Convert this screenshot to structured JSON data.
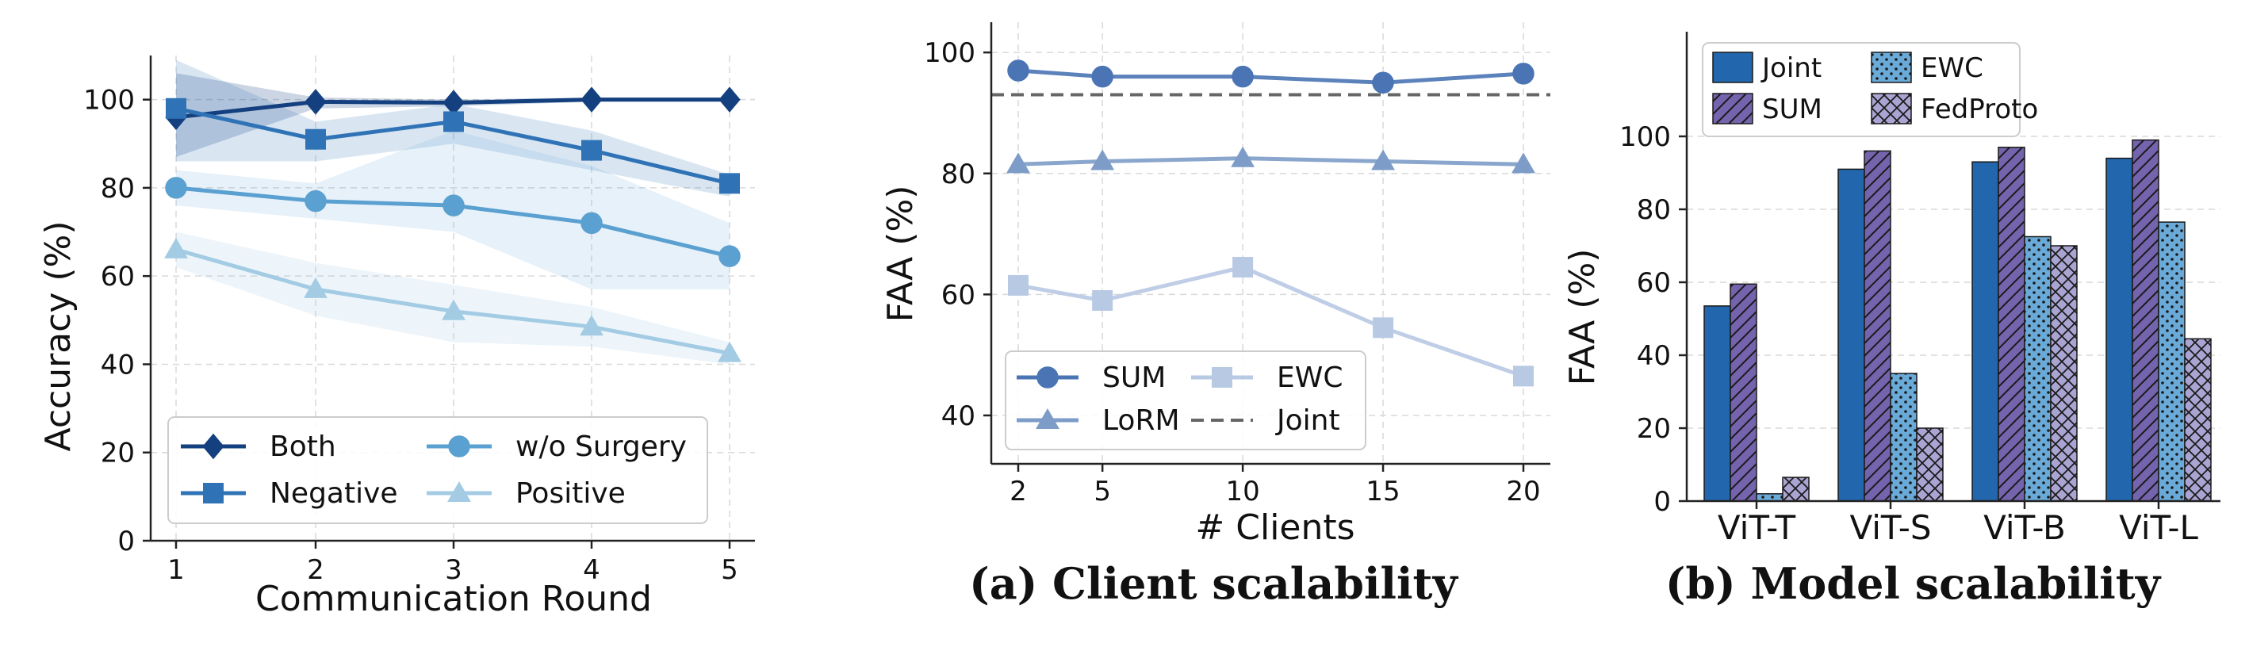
{
  "chart_data": [
    {
      "type": "line",
      "xlabel": "Communication Round",
      "ylabel": "Accuracy (%)",
      "x": [
        1,
        2,
        3,
        4,
        5
      ],
      "xticks": [
        "1",
        "2",
        "3",
        "4",
        "5"
      ],
      "ylim": [
        0,
        110
      ],
      "yticks": [
        "0",
        "20",
        "40",
        "60",
        "80",
        "100"
      ],
      "grid": true,
      "legend_position": "bottom",
      "series": [
        {
          "name": "Both",
          "marker": "diamond",
          "color": "#14407f",
          "values": [
            96,
            99.5,
            99.3,
            100,
            100
          ],
          "band_low": [
            87,
            98,
            98.5,
            99.5,
            99.5
          ],
          "band_high": [
            106,
            100.5,
            100,
            100.5,
            100.5
          ],
          "band_color": "#14407f",
          "band_opacity": 0.22
        },
        {
          "name": "Negative",
          "marker": "square",
          "color": "#2f73b6",
          "values": [
            98,
            91,
            95,
            88.5,
            81
          ],
          "band_low": [
            86,
            86,
            90,
            84,
            78
          ],
          "band_high": [
            109,
            95,
            99,
            93,
            83
          ],
          "band_color": "#2f73b6",
          "band_opacity": 0.18
        },
        {
          "name": "w/o Surgery",
          "marker": "circle",
          "color": "#5aa0d0",
          "values": [
            80,
            77,
            76,
            72,
            64.5
          ],
          "band_low": [
            76,
            73,
            70,
            57,
            57
          ],
          "band_high": [
            84,
            81,
            93,
            85,
            72
          ],
          "band_color": "#6aaad8",
          "band_opacity": 0.16
        },
        {
          "name": "Positive",
          "marker": "triangle",
          "color": "#a3cce4",
          "values": [
            66,
            57,
            52,
            48.5,
            42.5
          ],
          "band_low": [
            62,
            51,
            45,
            44,
            40
          ],
          "band_high": [
            70,
            63,
            58,
            53,
            45
          ],
          "band_color": "#a3cce4",
          "band_opacity": 0.2
        }
      ]
    },
    {
      "type": "line",
      "caption": "(a) Client scalability",
      "xlabel": "# Clients",
      "ylabel": "FAA (%)",
      "x": [
        2,
        5,
        10,
        15,
        20
      ],
      "xticks": [
        "2",
        "5",
        "10",
        "15",
        "20"
      ],
      "xlim": [
        1.5,
        20.5
      ],
      "ylim": [
        32,
        105
      ],
      "yticks": [
        "40",
        "60",
        "80",
        "100"
      ],
      "grid": true,
      "legend_position": "bottom",
      "series": [
        {
          "name": "SUM",
          "marker": "circle",
          "color": "#4a74b4",
          "values": [
            97,
            96,
            96,
            95,
            96.5
          ]
        },
        {
          "name": "LoRM",
          "marker": "triangle",
          "color": "#7d9cc8",
          "values": [
            81.5,
            82,
            82.5,
            82,
            81.5
          ]
        },
        {
          "name": "EWC",
          "marker": "square",
          "color": "#b8c9e3",
          "values": [
            61.5,
            59,
            64.5,
            54.5,
            46.5
          ]
        },
        {
          "name": "Joint",
          "marker": "none",
          "dashed": true,
          "color": "#666666",
          "values": [
            93,
            93,
            93,
            93,
            93
          ]
        }
      ]
    },
    {
      "type": "bar",
      "caption": "(b) Model scalability",
      "ylabel": "FAA (%)",
      "categories": [
        "ViT-T",
        "ViT-S",
        "ViT-B",
        "ViT-L"
      ],
      "ylim": [
        0,
        100
      ],
      "yticks": [
        "0",
        "20",
        "40",
        "60",
        "80",
        "100"
      ],
      "legend_position": "top-left",
      "series": [
        {
          "name": "Joint",
          "color": "#2266ad",
          "pattern": "solid",
          "values": [
            53.5,
            91,
            93,
            94
          ]
        },
        {
          "name": "SUM",
          "color": "#7463ad",
          "pattern": "diagonal",
          "values": [
            59.5,
            96,
            97,
            99
          ]
        },
        {
          "name": "EWC",
          "color": "#6aaad8",
          "pattern": "dots",
          "values": [
            2,
            35,
            72.5,
            76.5
          ]
        },
        {
          "name": "FedProto",
          "color": "#a9a4d2",
          "pattern": "crosshatch",
          "values": [
            6.5,
            20,
            70,
            44.5
          ]
        }
      ]
    }
  ]
}
